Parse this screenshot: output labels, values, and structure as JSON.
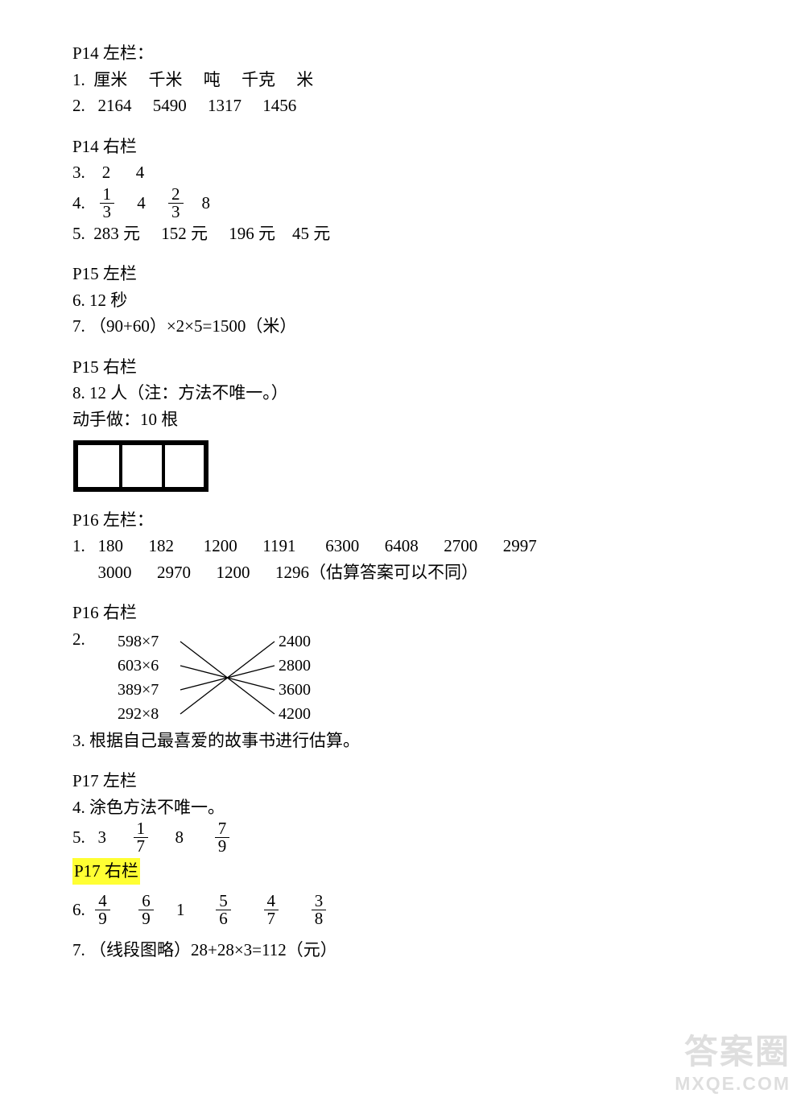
{
  "p14left": {
    "title": "P14 左栏：",
    "q1": {
      "n": "1.",
      "items": [
        "厘米",
        "千米",
        "吨",
        "千克",
        "米"
      ]
    },
    "q2": {
      "n": "2.",
      "items": [
        "2164",
        "5490",
        "1317",
        "1456"
      ]
    }
  },
  "p14right": {
    "title": "P14 右栏",
    "q3": {
      "n": "3.",
      "a": "2",
      "b": "4"
    },
    "q4": {
      "n": "4.",
      "f1n": "1",
      "f1d": "3",
      "b": "4",
      "f2n": "2",
      "f2d": "3",
      "c": "8"
    },
    "q5": {
      "n": "5.",
      "items": [
        "283 元",
        "152 元",
        "196 元",
        "45 元"
      ]
    }
  },
  "p15left": {
    "title": "P15 左栏",
    "q6": "6. 12 秒",
    "q7": "7. （90+60）×2×5=1500（米）"
  },
  "p15right": {
    "title": "P15 右栏",
    "q8": "8. 12 人（注：方法不唯一。）",
    "hands": "动手做：10 根",
    "sticks": {
      "width": 170,
      "height": 66,
      "outer_stroke": 6,
      "inner_stroke": 4,
      "color": "#000000",
      "vlines_x": [
        60,
        113
      ]
    }
  },
  "p16left": {
    "title": "P16 左栏：",
    "q1n": "1.",
    "row1": [
      "180",
      "182",
      "1200",
      "1191",
      "6300",
      "6408",
      "2700",
      "2997"
    ],
    "row2": [
      "3000",
      "2970",
      "1200",
      "1296（估算答案可以不同）"
    ]
  },
  "p16right": {
    "title": "P16 右栏",
    "q2n": "2.",
    "left_exprs": [
      "598×7",
      "603×6",
      "389×7",
      "292×8"
    ],
    "right_vals": [
      "2400",
      "2800",
      "3600",
      "4200"
    ],
    "edges": [
      [
        0,
        3
      ],
      [
        1,
        2
      ],
      [
        2,
        1
      ],
      [
        3,
        0
      ]
    ],
    "line_color": "#000000",
    "q3": "3. 根据自己最喜爱的故事书进行估算。"
  },
  "p17left": {
    "title": "P17 左栏",
    "q4": "4. 涂色方法不唯一。",
    "q5": {
      "n": "5.",
      "a": "3",
      "f1n": "1",
      "f1d": "7",
      "b": "8",
      "f2n": "7",
      "f2d": "9"
    }
  },
  "p17right": {
    "title": "P17 右栏",
    "q6": {
      "n": "6.",
      "fracs": [
        {
          "n": "4",
          "d": "9"
        },
        {
          "n": "6",
          "d": "9"
        }
      ],
      "one": "1",
      "fracs2": [
        {
          "n": "5",
          "d": "6"
        },
        {
          "n": "4",
          "d": "7"
        },
        {
          "n": "3",
          "d": "8"
        }
      ]
    },
    "q7": "7. （线段图略）28+28×3=112（元）"
  },
  "watermark": {
    "line1": "答案圈",
    "line2": "MXQE.COM"
  }
}
